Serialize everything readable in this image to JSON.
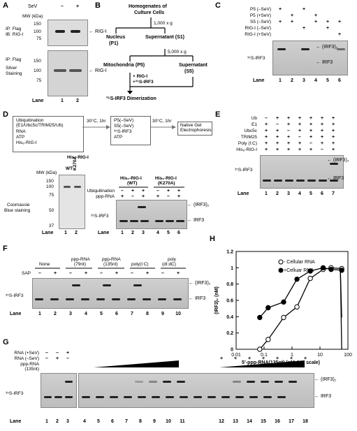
{
  "panels": [
    "A",
    "B",
    "C",
    "D",
    "E",
    "F",
    "G",
    "H"
  ],
  "A": {
    "sev_label": "SeV",
    "minus": "–",
    "plus": "+",
    "mw_label": "MW (kDa)",
    "ip1": "IP: Flag",
    "ib1": "IB: RIG-I",
    "rigi": "← RIG-I",
    "ip2": "IP: Flag",
    "ss": "Silver",
    "ss2": "Staining",
    "mw": [
      "150",
      "100",
      "75"
    ],
    "lane_label": "Lane",
    "lanes": [
      "1",
      "2"
    ]
  },
  "B": {
    "top": "Homogenates of",
    "top2": "Culture Cells",
    "g1": "1,000 x g",
    "g2": "5,000 x g",
    "p1": "Nucleus",
    "p1b": "(P1)",
    "s1": "Supernatant (S1)",
    "p5": "Mitochondria (P5)",
    "s5": "Supernatant",
    "s5b": "(S5)",
    "add1": "+ RIG-I",
    "add2": "+³⁵S-IRF3",
    "bottom": "³⁵S-IRF3 Dimerization"
  },
  "C": {
    "rows": [
      "P5 (–SeV)",
      "P5 (+SeV)",
      "S5 (–SeV)",
      "RIG-I (–SeV)",
      "RIG-I (+SeV)"
    ],
    "signs": [
      [
        "+",
        "",
        "+",
        "",
        "",
        ""
      ],
      [
        "",
        "+",
        "",
        "+",
        "",
        ""
      ],
      [
        "+",
        "+",
        "",
        "+",
        "+",
        "+"
      ],
      [
        "",
        "",
        "+",
        "",
        "+",
        ""
      ],
      [
        "",
        "",
        "",
        "",
        "",
        "+"
      ]
    ],
    "dimer": "← (IRF3)₂",
    "mono": "← IRF3",
    "side": "³⁵S-IRF3",
    "lane_label": "Lane",
    "lanes": [
      "1",
      "2",
      "3",
      "4",
      "5",
      "6"
    ]
  },
  "D": {
    "box1": [
      "Ubiquitination",
      "(E1/Ubc5c/TRIM25/Ub)",
      "RNA",
      "ATP",
      "His₆-RIG-I"
    ],
    "step1": "30°C, 1hr",
    "box2": [
      "P5(–SeV)",
      "S5(–SeV)",
      "³⁵S-IRF3",
      "ATP"
    ],
    "step2": "30°C, 1hr",
    "box3": [
      "Native Gel",
      "Electrophoresis"
    ],
    "his_title": "His₆-RIG-I",
    "wt": "WT",
    "k270a": "K270A",
    "mw_label": "MW (kDa)",
    "mw": [
      "150",
      "100",
      "75",
      "50",
      "37"
    ],
    "coom": "Coomassie",
    "coom2": "Blue staining",
    "lane_label": "Lane",
    "lanes_left": [
      "1",
      "2"
    ],
    "grp1": "His₆-RIG-I",
    "grp1b": "(WT)",
    "grp2": "His₆-RIG-I",
    "grp2b": "(K270A)",
    "ub": "Ubiquitination",
    "ppp": "ppp-RNA",
    "ub_signs": [
      "–",
      "+",
      "+",
      "–",
      "+",
      "+"
    ],
    "ppp_signs": [
      "+",
      "–",
      "+",
      "+",
      "–",
      "+"
    ],
    "dimer": "← (IRF3)₂",
    "mono": "← IRF3",
    "side": "³⁵S-IRF3",
    "lanes_right": [
      "1",
      "2",
      "3",
      "4",
      "5",
      "6"
    ]
  },
  "E": {
    "rows": [
      "Ub",
      "E1",
      "Ubc5c",
      "TRIM25",
      "Poly (I:C)",
      "His₆-RIG-I"
    ],
    "signs": [
      [
        "–",
        "+",
        "+",
        "+",
        "+",
        "+",
        "+"
      ],
      [
        "+",
        "–",
        "+",
        "+",
        "+",
        "+",
        "+"
      ],
      [
        "+",
        "+",
        "–",
        "+",
        "+",
        "+",
        "+"
      ],
      [
        "+",
        "+",
        "+",
        "–",
        "+",
        "+",
        "+"
      ],
      [
        "+",
        "+",
        "+",
        "+",
        "–",
        "+",
        "+"
      ],
      [
        "+",
        "+",
        "+",
        "+",
        "+",
        "–",
        "+"
      ]
    ],
    "dimer": "← (IRF3)₂",
    "mono": "← IRF3",
    "side": "³⁵S-IRF3",
    "lane_label": "Lane",
    "lanes": [
      "1",
      "2",
      "3",
      "4",
      "5",
      "6",
      "7"
    ]
  },
  "F": {
    "groups": [
      "None",
      "ppp-RNA",
      "(79nt)",
      "ppp-RNA",
      "(135nt)",
      "poly(I:C)",
      "poly",
      "(dI:dC)"
    ],
    "sap": "SAP",
    "sap_signs": [
      "–",
      "+",
      "–",
      "+",
      "–",
      "+",
      "–",
      "+",
      "–",
      "+"
    ],
    "dimer": "← (IRF3)₂",
    "mono": "← IRF3",
    "side": "³⁵S-IRF3",
    "lane_label": "Lane",
    "lanes": [
      "1",
      "2",
      "3",
      "4",
      "5",
      "6",
      "7",
      "8",
      "9",
      "10"
    ]
  },
  "G": {
    "rows": [
      "RNA (+SeV)",
      "RNA (–SeV)",
      "ppp-RNA",
      "(135nt)"
    ],
    "sevp": [
      "–",
      "–",
      "+"
    ],
    "sevm": [
      "–",
      "+",
      "–"
    ],
    "dimer": "← (IRF3)₂",
    "mono": "← IRF3",
    "side": "³⁵S-IRF3",
    "lane_label": "Lane",
    "lanes_a": [
      "1",
      "2",
      "3"
    ],
    "lanes_b": [
      "4",
      "5",
      "6",
      "7",
      "8",
      "9",
      "10",
      "11"
    ],
    "lanes_c": [
      "12",
      "13",
      "14",
      "15",
      "16",
      "17",
      "18"
    ],
    "plus_c": [
      "+",
      "+",
      "+",
      "+",
      "+",
      "+",
      "+"
    ]
  },
  "H": {
    "ylabel": "(IRF3)₂ (nM)",
    "xlabel": "5’-ppp-RNA(135nt) (nM, log scale)",
    "legend_open": "- Cellular RNA",
    "legend_closed": "+Celluar RNA"
  },
  "chart_data": {
    "type": "scatter",
    "title": "",
    "xlabel": "5’-ppp-RNA(135nt) (nM, log scale)",
    "ylabel": "(IRF3)₂ (nM)",
    "x_scale": "log",
    "xlim": [
      0.01,
      100
    ],
    "ylim": [
      0,
      1.2
    ],
    "x_ticks": [
      "0.01",
      "0.1",
      "1",
      "10",
      "100"
    ],
    "y_ticks": [
      "0",
      "0.2",
      "0.4",
      "0.6",
      "0.8",
      "1",
      "1.2"
    ],
    "legend": "top-left",
    "series": [
      {
        "name": "- Cellular RNA",
        "marker": "open-circle",
        "x": [
          0.07,
          0.14,
          0.5,
          1.5,
          4.5,
          13,
          25,
          60
        ],
        "y": [
          0.0,
          0.12,
          0.39,
          0.52,
          0.87,
          0.98,
          1.0,
          0.99
        ]
      },
      {
        "name": "+Celluar RNA",
        "marker": "filled-circle",
        "x": [
          0.07,
          0.14,
          0.5,
          1.5,
          4.5,
          13,
          25,
          60
        ],
        "y": [
          0.39,
          0.51,
          0.58,
          0.86,
          0.96,
          1.0,
          0.98,
          0.97
        ]
      }
    ]
  }
}
